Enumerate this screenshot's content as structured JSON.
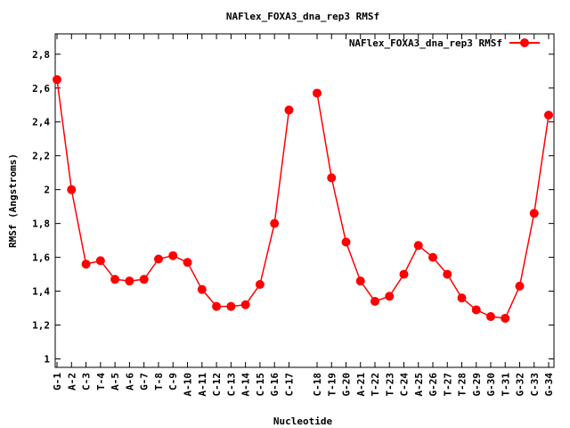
{
  "chart_data": {
    "type": "line",
    "title": "NAFlex_FOXA3_dna_rep3 RMSf",
    "xlabel": "Nucleotide",
    "ylabel": "RMSf (Angstroms)",
    "ylim": [
      0.95,
      2.92
    ],
    "yticks": [
      "1",
      "1,2",
      "1,4",
      "1,6",
      "1,8",
      "2",
      "2,2",
      "2,4",
      "2,6",
      "2,8"
    ],
    "ytick_values": [
      1.0,
      1.2,
      1.4,
      1.6,
      1.8,
      2.0,
      2.2,
      2.4,
      2.6,
      2.8
    ],
    "legend_position": "top-right",
    "grid": false,
    "series_color": "#ff0000",
    "categories": [
      "G-1",
      "A-2",
      "C-3",
      "T-4",
      "A-5",
      "A-6",
      "G-7",
      "T-8",
      "C-9",
      "A-10",
      "A-11",
      "C-12",
      "C-13",
      "A-14",
      "C-15",
      "G-16",
      "C-17",
      "C-18",
      "T-19",
      "G-20",
      "A-21",
      "T-22",
      "T-23",
      "C-24",
      "A-25",
      "G-26",
      "T-27",
      "T-28",
      "G-29",
      "G-30",
      "T-31",
      "G-32",
      "C-33",
      "G-34"
    ],
    "series": [
      {
        "name": "NAFlex_FOXA3_dna_rep3 RMSf",
        "segments": [
          [
            2.65,
            2.0,
            1.56,
            1.58,
            1.47,
            1.46,
            1.47,
            1.59,
            1.61,
            1.57,
            1.41,
            1.31,
            1.31,
            1.32,
            1.44,
            1.8,
            2.47
          ],
          [
            2.57,
            2.07,
            1.69,
            1.46,
            1.34,
            1.37,
            1.5,
            1.67,
            1.6,
            1.5,
            1.36,
            1.29,
            1.25,
            1.24,
            1.43,
            1.86,
            2.44
          ]
        ]
      }
    ]
  }
}
